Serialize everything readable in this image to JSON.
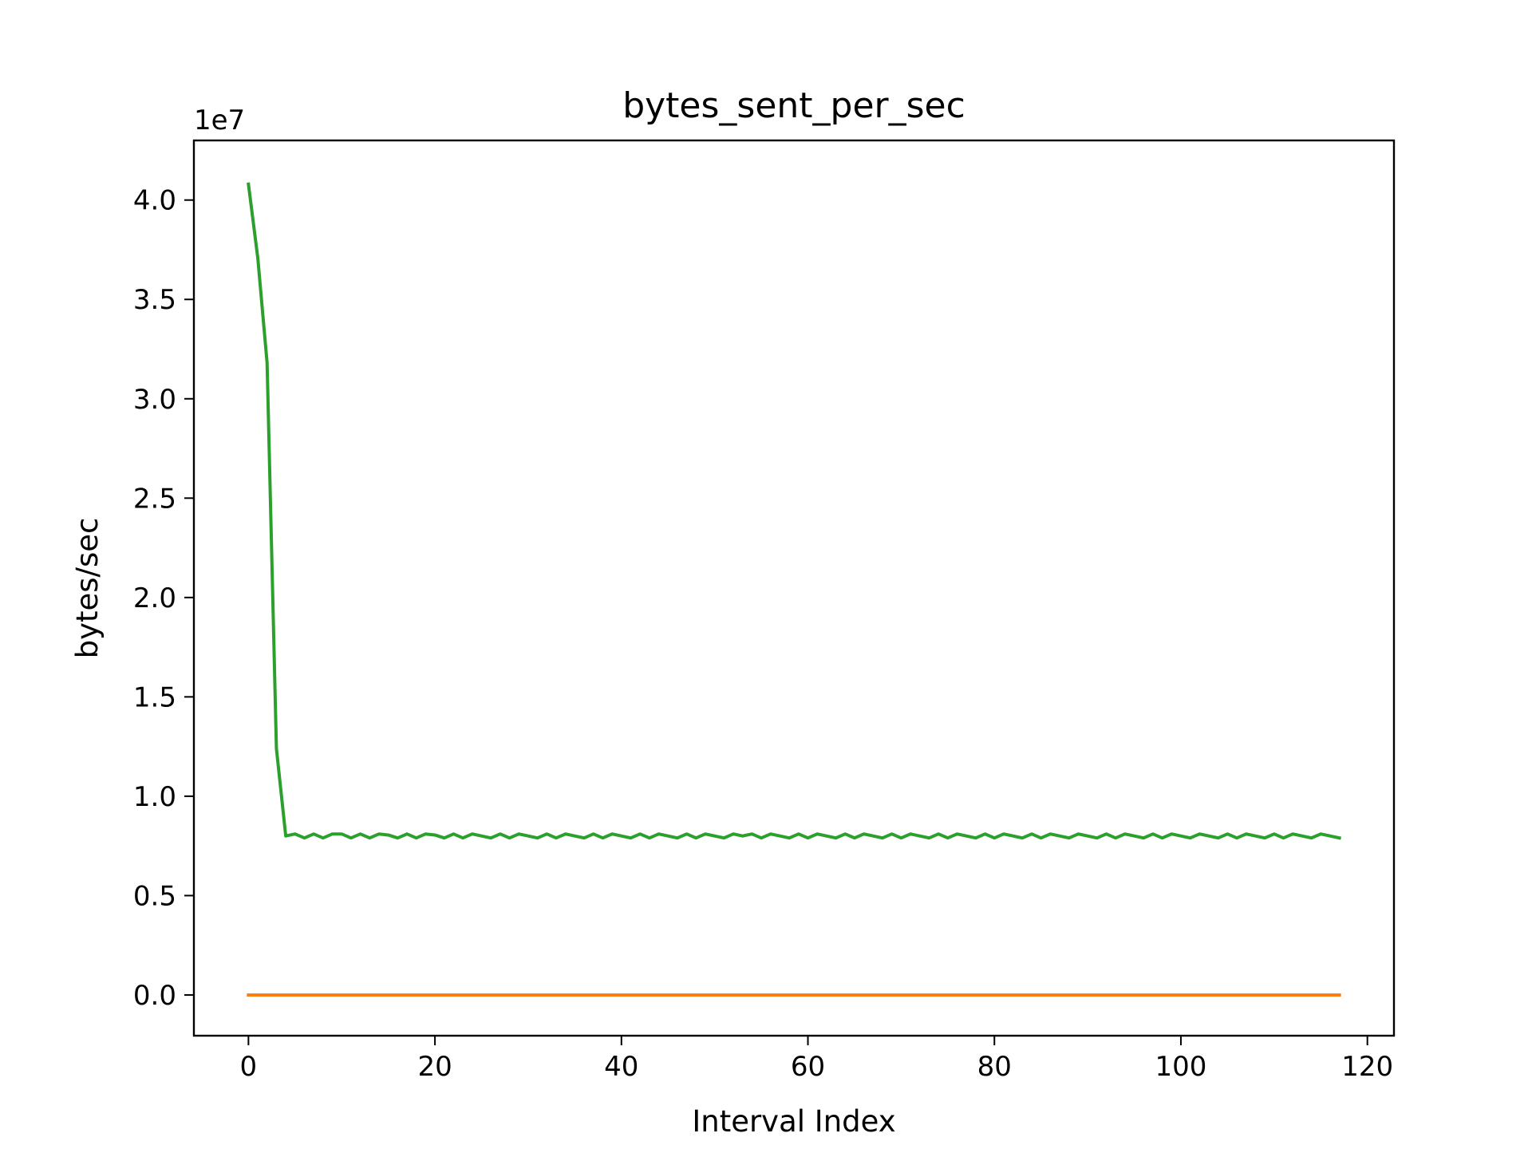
{
  "chart_data": {
    "type": "line",
    "title": "bytes_sent_per_sec",
    "xlabel": "Interval Index",
    "ylabel": "bytes/sec",
    "offset_label": "1e7",
    "xlim": [
      -5.85,
      122.85
    ],
    "ylim": [
      -0.205,
      4.3
    ],
    "y_scale": 10000000,
    "grid": false,
    "legend": false,
    "x_ticks": [
      0,
      20,
      40,
      60,
      80,
      100,
      120
    ],
    "x_tick_labels": [
      "0",
      "20",
      "40",
      "60",
      "80",
      "100",
      "120"
    ],
    "y_ticks": [
      0,
      0.5,
      1.0,
      1.5,
      2.0,
      2.5,
      3.0,
      3.5,
      4.0
    ],
    "y_tick_labels": [
      "0.0",
      "0.5",
      "1.0",
      "1.5",
      "2.0",
      "2.5",
      "3.0",
      "3.5",
      "4.0"
    ],
    "series": [
      {
        "color": "#ff7f0e",
        "x_start": 0,
        "x_end": 117,
        "values": [
          0,
          0
        ]
      },
      {
        "color": "#2ca02c",
        "x_start": 0,
        "values": [
          4.08,
          3.71,
          3.18,
          1.24,
          0.8,
          0.81,
          0.79,
          0.81,
          0.79,
          0.81,
          0.81,
          0.79,
          0.81,
          0.79,
          0.81,
          0.805,
          0.79,
          0.81,
          0.79,
          0.81,
          0.805,
          0.79,
          0.81,
          0.79,
          0.81,
          0.8,
          0.79,
          0.81,
          0.79,
          0.81,
          0.8,
          0.79,
          0.81,
          0.79,
          0.81,
          0.8,
          0.79,
          0.81,
          0.79,
          0.81,
          0.8,
          0.79,
          0.81,
          0.79,
          0.81,
          0.8,
          0.79,
          0.81,
          0.79,
          0.81,
          0.8,
          0.79,
          0.81,
          0.8,
          0.81,
          0.79,
          0.81,
          0.8,
          0.79,
          0.81,
          0.79,
          0.81,
          0.8,
          0.79,
          0.81,
          0.79,
          0.81,
          0.8,
          0.79,
          0.81,
          0.79,
          0.81,
          0.8,
          0.79,
          0.81,
          0.79,
          0.81,
          0.8,
          0.79,
          0.81,
          0.79,
          0.81,
          0.8,
          0.79,
          0.81,
          0.79,
          0.81,
          0.8,
          0.79,
          0.81,
          0.8,
          0.79,
          0.81,
          0.79,
          0.81,
          0.8,
          0.79,
          0.81,
          0.79,
          0.81,
          0.8,
          0.79,
          0.81,
          0.8,
          0.79,
          0.81,
          0.79,
          0.81,
          0.8,
          0.79,
          0.81,
          0.79,
          0.81,
          0.8,
          0.79,
          0.81,
          0.8,
          0.79
        ]
      }
    ]
  }
}
